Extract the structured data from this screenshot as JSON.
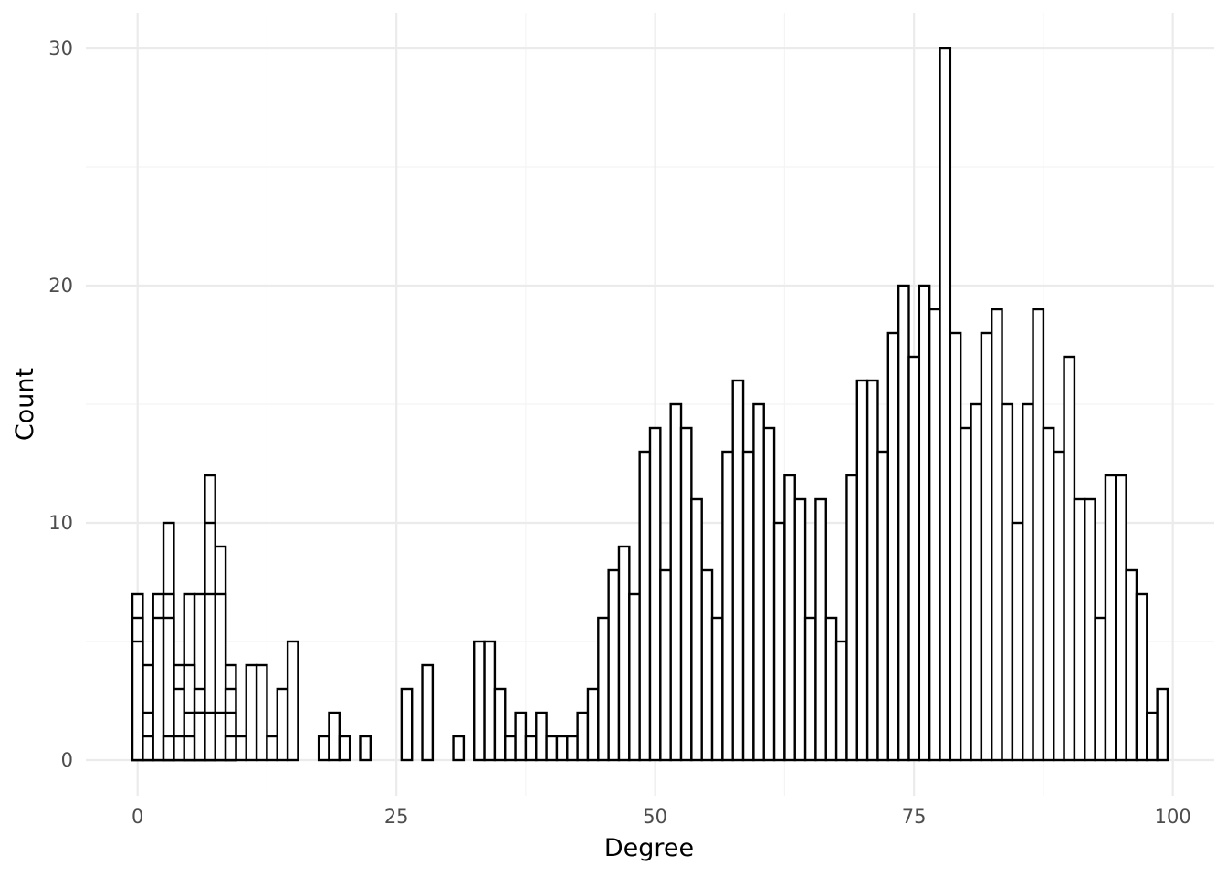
{
  "chart_data": {
    "type": "bar",
    "title": "",
    "xlabel": "Degree",
    "ylabel": "Count",
    "xlim": [
      -5,
      104
    ],
    "ylim": [
      -1.5,
      31.5
    ],
    "x_ticks": [
      0,
      25,
      50,
      75,
      100
    ],
    "y_ticks": [
      0,
      10,
      20,
      30
    ],
    "grid": true,
    "bin_width": 1,
    "colors": {
      "fill": "#ffffff",
      "outline": "#000000",
      "grid": "#ebebeb"
    },
    "x": [
      0,
      1,
      2,
      3,
      4,
      5,
      6,
      7,
      8,
      9,
      10,
      11,
      12,
      13,
      14,
      15,
      16,
      17,
      18,
      19,
      20,
      21,
      22,
      23,
      24,
      25,
      26,
      27,
      28,
      29,
      30,
      31,
      32,
      33,
      34,
      35,
      36,
      37,
      38,
      39,
      40,
      41,
      42,
      43,
      44,
      45,
      46,
      47,
      48,
      49,
      50,
      51,
      52,
      53,
      54,
      55,
      56,
      57,
      58,
      59,
      60,
      61,
      62,
      63,
      64,
      65,
      66,
      67,
      68,
      69,
      70,
      71,
      72,
      73,
      74,
      75,
      76,
      77,
      78,
      79,
      80,
      81,
      82,
      83,
      84,
      85,
      86,
      87,
      88,
      89,
      90,
      91,
      92,
      93,
      94,
      95,
      96,
      97,
      98,
      99
    ],
    "series": [
      {
        "values": [
          7,
          4,
          7,
          10,
          4,
          7,
          7,
          12,
          9,
          4,
          1,
          4,
          4,
          1,
          3,
          5,
          0,
          0,
          1,
          2,
          1,
          0,
          1,
          0,
          0,
          0,
          3,
          0,
          4,
          0,
          0,
          1,
          0,
          5,
          5,
          3,
          1,
          2,
          1,
          2,
          1,
          1,
          1,
          2,
          3,
          6,
          8,
          9,
          7,
          13,
          14,
          8,
          15,
          14,
          11,
          8,
          6,
          13,
          16,
          13,
          15,
          14,
          10,
          12,
          11,
          6,
          11,
          6,
          5,
          12,
          16,
          16,
          13,
          18,
          20,
          17,
          20,
          19,
          30,
          18,
          14,
          15,
          18,
          19,
          15,
          10,
          15,
          19,
          14,
          13,
          17,
          11,
          11,
          6,
          12,
          12,
          8,
          7,
          2,
          3
        ]
      },
      {
        "values": [
          6,
          2,
          4,
          7,
          3,
          4,
          3,
          10,
          7,
          3,
          0,
          0,
          0,
          0,
          0,
          0,
          0,
          0,
          0,
          0,
          0,
          0,
          0,
          0,
          0,
          0,
          0,
          0,
          0,
          0,
          0,
          0,
          0,
          0,
          0,
          0,
          0,
          0,
          0,
          0,
          0,
          0,
          0,
          0,
          0,
          0,
          0,
          0,
          0,
          0,
          0,
          0,
          0,
          0,
          0,
          0,
          0,
          0,
          0,
          0,
          0,
          0,
          0,
          0,
          0,
          0,
          0,
          0,
          0,
          0,
          0,
          0,
          0,
          0,
          0,
          0,
          0,
          0,
          0,
          0,
          0,
          0,
          0,
          0,
          0,
          0,
          0,
          0,
          0,
          0,
          0,
          0,
          0,
          0,
          0,
          0,
          0,
          0,
          0,
          0
        ]
      },
      {
        "values": [
          5,
          1,
          6,
          6,
          1,
          2,
          2,
          7,
          2,
          2,
          0,
          0,
          0,
          0,
          0,
          0,
          0,
          0,
          0,
          0,
          0,
          0,
          0,
          0,
          0,
          0,
          0,
          0,
          0,
          0,
          0,
          0,
          0,
          0,
          0,
          0,
          0,
          0,
          0,
          0,
          0,
          0,
          0,
          0,
          0,
          0,
          0,
          0,
          0,
          0,
          0,
          0,
          0,
          0,
          0,
          0,
          0,
          0,
          0,
          0,
          0,
          0,
          0,
          0,
          0,
          0,
          0,
          0,
          0,
          0,
          0,
          0,
          0,
          0,
          0,
          0,
          0,
          0,
          0,
          0,
          0,
          0,
          0,
          0,
          0,
          0,
          0,
          0,
          0,
          0,
          0,
          0,
          0,
          0,
          0,
          0,
          0,
          0,
          0,
          0
        ]
      },
      {
        "values": [
          0,
          0,
          0,
          1,
          0,
          1,
          2,
          2,
          0,
          1,
          0,
          0,
          0,
          0,
          0,
          0,
          0,
          0,
          0,
          0,
          0,
          0,
          0,
          0,
          0,
          0,
          0,
          0,
          0,
          0,
          0,
          0,
          0,
          0,
          0,
          0,
          0,
          0,
          0,
          0,
          0,
          0,
          0,
          0,
          0,
          0,
          0,
          0,
          0,
          0,
          0,
          0,
          0,
          0,
          0,
          0,
          0,
          0,
          0,
          0,
          0,
          0,
          0,
          0,
          0,
          0,
          0,
          0,
          0,
          0,
          0,
          0,
          0,
          0,
          0,
          0,
          0,
          0,
          0,
          0,
          0,
          0,
          0,
          0,
          0,
          0,
          0,
          0,
          0,
          0,
          0,
          0,
          0,
          0,
          0,
          0,
          0,
          0,
          0,
          0
        ]
      }
    ]
  }
}
